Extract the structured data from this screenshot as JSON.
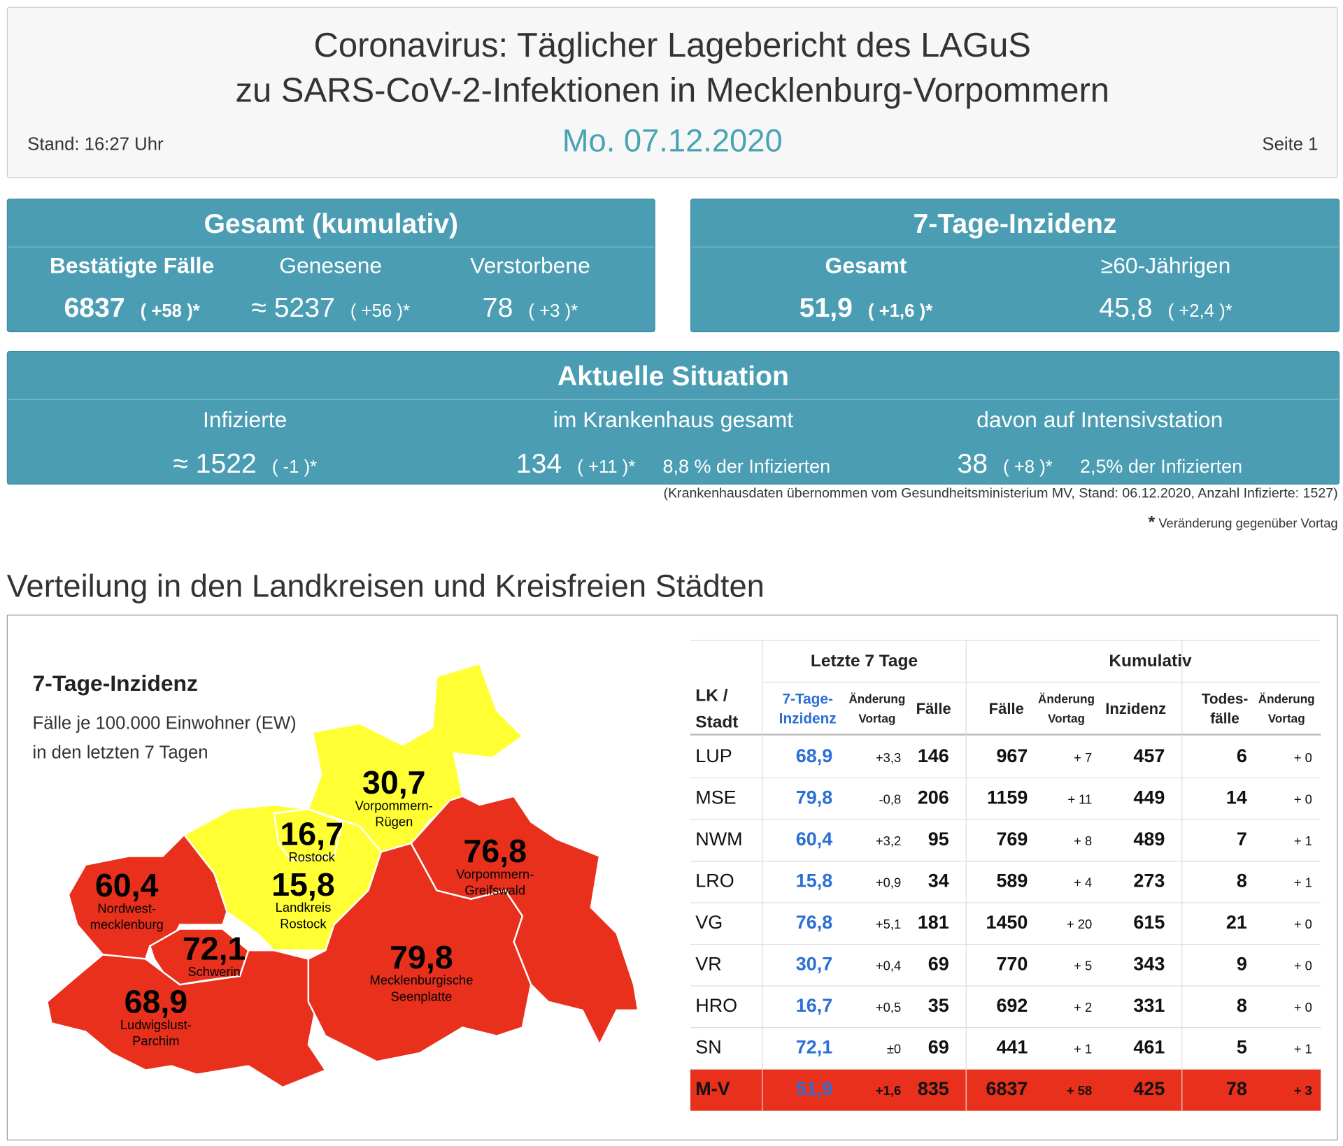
{
  "header": {
    "title_lines": [
      "Coronavirus: Täglicher Lagebericht des LAGuS",
      "zu SARS-CoV-2-Infektionen in Mecklenburg-Vorpommern"
    ],
    "stand": "Stand: 16:27 Uhr",
    "date": "Mo. 07.12.2020",
    "page": "Seite 1"
  },
  "panels": [
    {
      "title": "Gesamt (kumulativ)",
      "items": [
        {
          "label": "Bestätigte Fälle",
          "value": "6837",
          "change": "( +58 )*"
        },
        {
          "label": "Genesene",
          "value": "≈ 5237",
          "change": "( +56 )*"
        },
        {
          "label": "Verstorbene",
          "value": "78",
          "change": "( +3 )*"
        }
      ]
    },
    {
      "title": "7-Tage-Inzidenz",
      "items": [
        {
          "label": "Gesamt",
          "value": "51,9",
          "change": "( +1,6 )*"
        },
        {
          "label": "≥60-Jährigen",
          "value": "45,8",
          "change": "( +2,4 )*"
        }
      ]
    },
    {
      "title": "Aktuelle Situation",
      "items": [
        {
          "label": "Infizierte",
          "value": "≈ 1522",
          "change": "( -1 )*"
        },
        {
          "label": "im Krankenhaus gesamt",
          "value": "134",
          "change": "( +11 )*",
          "note": "8,8 % der Infizierten"
        },
        {
          "label": "davon auf Intensivstation",
          "value": "38",
          "change": "( +8 )*",
          "note": "2,5% der Infizierten"
        }
      ]
    }
  ],
  "footnote": "(Krankenhausdaten übernommen vom Gesundheitsministerium MV, Stand: 06.12.2020, Anzahl Infizierte: 1527)",
  "change_note": {
    "star": "*",
    "text": "Veränderung gegenüber Vortag"
  },
  "section_title": "Verteilung in den Landkreisen und Kreisfreien Städten",
  "map": {
    "title": "7-Tage-Inzidenz",
    "subtitle_lines": [
      "Fälle je 100.000 Einwohner (EW)",
      "in den letzten 7 Tagen"
    ],
    "regions": [
      {
        "value": "30,7",
        "name_lines": [
          "Vorpommern-",
          "Rügen"
        ]
      },
      {
        "value": "16,7",
        "name_lines": [
          "Rostock"
        ]
      },
      {
        "value": "15,8",
        "name_lines": [
          "Landkreis",
          "Rostock"
        ]
      },
      {
        "value": "76,8",
        "name_lines": [
          "Vorpommern-",
          "Greifswald"
        ]
      },
      {
        "value": "60,4",
        "name_lines": [
          "Nordwest-",
          "mecklenburg"
        ]
      },
      {
        "value": "72,1",
        "name_lines": [
          "Schwerin"
        ]
      },
      {
        "value": "79,8",
        "name_lines": [
          "Mecklenburgische",
          "Seenplatte"
        ]
      },
      {
        "value": "68,9",
        "name_lines": [
          "Ludwigslust-",
          "Parchim"
        ]
      }
    ]
  },
  "table": {
    "groups": [
      "Letzte 7 Tage",
      "Kumulativ"
    ],
    "columns": [
      [
        "LK /",
        "Stadt"
      ],
      [
        "7-Tage-",
        "Inzidenz"
      ],
      [
        "Änderung",
        "Vortag"
      ],
      [
        "Fälle"
      ],
      [
        "Fälle"
      ],
      [
        "Änderung",
        "Vortag"
      ],
      [
        "Inzidenz"
      ],
      [
        "Todes-",
        "fälle"
      ],
      [
        "Änderung",
        "Vortag"
      ]
    ],
    "rows": [
      [
        "LUP",
        "68,9",
        "+3,3",
        "146",
        "967",
        "+ 7",
        "457",
        "6",
        "+ 0"
      ],
      [
        "MSE",
        "79,8",
        "-0,8",
        "206",
        "1159",
        "+ 11",
        "449",
        "14",
        "+ 0"
      ],
      [
        "NWM",
        "60,4",
        "+3,2",
        "95",
        "769",
        "+ 8",
        "489",
        "7",
        "+ 1"
      ],
      [
        "LRO",
        "15,8",
        "+0,9",
        "34",
        "589",
        "+ 4",
        "273",
        "8",
        "+ 1"
      ],
      [
        "VG",
        "76,8",
        "+5,1",
        "181",
        "1450",
        "+ 20",
        "615",
        "21",
        "+ 0"
      ],
      [
        "VR",
        "30,7",
        "+0,4",
        "69",
        "770",
        "+ 5",
        "343",
        "9",
        "+ 0"
      ],
      [
        "HRO",
        "16,7",
        "+0,5",
        "35",
        "692",
        "+ 2",
        "331",
        "8",
        "+ 0"
      ],
      [
        "SN",
        "72,1",
        "±0",
        "69",
        "441",
        "+ 1",
        "461",
        "5",
        "+ 1"
      ],
      [
        "M-V",
        "51,9",
        "+1,6",
        "835",
        "6837",
        "+ 58",
        "425",
        "78",
        "+ 3"
      ]
    ]
  }
}
